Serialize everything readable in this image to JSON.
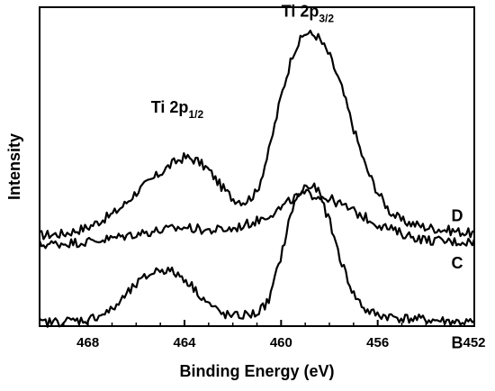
{
  "chart_data": {
    "type": "line",
    "xlabel": "Binding Energy (eV)",
    "ylabel": "Intensity",
    "xlim": [
      470,
      452
    ],
    "x_reversed": true,
    "xticks": [
      468,
      464,
      460,
      456,
      452
    ],
    "xtick_labels": [
      "468",
      "464",
      "460",
      "456",
      "452"
    ],
    "y_ticks_shown": false,
    "grid": false,
    "annotations": [
      {
        "main": "Ti 2p",
        "sub": "1/2",
        "x": 464.3,
        "y": 0.67
      },
      {
        "main": "Ti 2p",
        "sub": "3/2",
        "x": 458.9,
        "y": 0.97
      }
    ],
    "series": [
      {
        "name": "D",
        "x": [
          470,
          469,
          468,
          467,
          466.5,
          466,
          465.5,
          465,
          464.5,
          464,
          463.5,
          463,
          462.5,
          462,
          461.5,
          461,
          460.5,
          460,
          459.5,
          459,
          458.5,
          458,
          457.5,
          457,
          456.5,
          456,
          455.5,
          455,
          454,
          453,
          452
        ],
        "y": [
          0.285,
          0.29,
          0.31,
          0.35,
          0.38,
          0.42,
          0.45,
          0.48,
          0.51,
          0.53,
          0.52,
          0.49,
          0.44,
          0.4,
          0.39,
          0.42,
          0.55,
          0.72,
          0.86,
          0.92,
          0.91,
          0.85,
          0.75,
          0.62,
          0.5,
          0.42,
          0.36,
          0.33,
          0.31,
          0.3,
          0.29
        ]
      },
      {
        "name": "C",
        "x": [
          470,
          469,
          468,
          467,
          466,
          465,
          464,
          463,
          462,
          461,
          460,
          459.5,
          459,
          458.5,
          458,
          457.5,
          457,
          456,
          455,
          454,
          453,
          452
        ],
        "y": [
          0.255,
          0.26,
          0.265,
          0.275,
          0.29,
          0.3,
          0.31,
          0.3,
          0.305,
          0.33,
          0.37,
          0.4,
          0.415,
          0.41,
          0.4,
          0.38,
          0.36,
          0.32,
          0.29,
          0.27,
          0.265,
          0.265
        ]
      },
      {
        "name": "B",
        "x": [
          470,
          469,
          468,
          467,
          466.5,
          466,
          465.5,
          465,
          464.5,
          464,
          463.5,
          463,
          462.5,
          462,
          461,
          460.5,
          460,
          459.5,
          459,
          458.5,
          458,
          457.5,
          457,
          456.5,
          456,
          455,
          454,
          453,
          452
        ],
        "y": [
          0.01,
          0.015,
          0.02,
          0.05,
          0.09,
          0.13,
          0.16,
          0.18,
          0.17,
          0.15,
          0.11,
          0.07,
          0.04,
          0.03,
          0.04,
          0.08,
          0.22,
          0.38,
          0.44,
          0.43,
          0.33,
          0.2,
          0.1,
          0.05,
          0.035,
          0.025,
          0.02,
          0.015,
          0.01
        ]
      }
    ]
  }
}
